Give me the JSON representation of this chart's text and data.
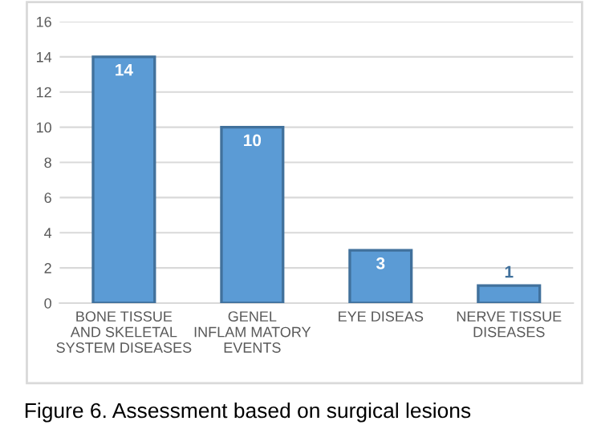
{
  "chart_data": {
    "type": "bar",
    "categories": [
      "BONE TISSUE\nAND SKELETAL\nSYSTEM DISEASES",
      "GENEL\nINFLAM MATORY\nEVENTS",
      "EYE DISEAS",
      "NERVE TISSUE\nDISEASES"
    ],
    "values": [
      14,
      10,
      3,
      1
    ],
    "color": "#5b9bd5",
    "ylim": [
      0,
      16
    ],
    "yticks": [
      0,
      2,
      4,
      6,
      8,
      10,
      12,
      14,
      16
    ],
    "grid": "y",
    "data_labels": true,
    "annotations": [
      "Figure 6. Assessment based on surgical lesions"
    ]
  }
}
